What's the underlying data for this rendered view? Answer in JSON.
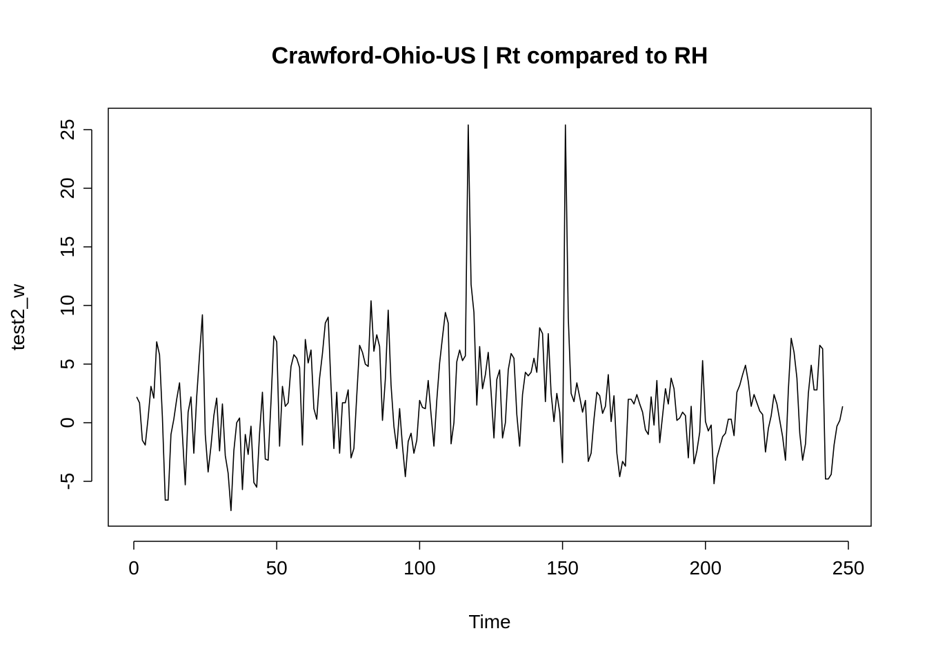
{
  "chart_data": {
    "type": "line",
    "title": "Crawford-Ohio-US | Rt compared to RH",
    "xlabel": "Time",
    "ylabel": "test2_w",
    "xlim": [
      1,
      248
    ],
    "ylim": [
      -7.5,
      25.5
    ],
    "x_ticks": [
      0,
      50,
      100,
      150,
      200,
      250
    ],
    "y_ticks": [
      -5,
      0,
      5,
      10,
      15,
      20,
      25
    ],
    "x_tick_labels": [
      "0",
      "50",
      "100",
      "150",
      "200",
      "250"
    ],
    "y_tick_labels": [
      "-5",
      "0",
      "5",
      "10",
      "15",
      "20",
      "25"
    ],
    "grid": false,
    "legend": "none",
    "series": [
      {
        "color": "#000000",
        "x_start": 1,
        "values": [
          2.2,
          1.7,
          -1.5,
          -1.9,
          0.4,
          3.1,
          2.1,
          6.9,
          5.8,
          0.5,
          -6.6,
          -6.6,
          -1.0,
          0.3,
          2.0,
          3.4,
          -1.0,
          -5.3,
          0.9,
          2.2,
          -2.6,
          2.2,
          5.8,
          9.2,
          -1.0,
          -4.2,
          -2.0,
          0.6,
          2.1,
          -2.4,
          1.6,
          -2.8,
          -4.3,
          -7.5,
          -2.4,
          0.0,
          0.4,
          -5.7,
          -1.0,
          -2.7,
          -0.3,
          -5.1,
          -5.5,
          -0.9,
          2.6,
          -3.1,
          -3.2,
          1.8,
          7.4,
          6.9,
          -2.0,
          3.1,
          1.4,
          1.7,
          4.8,
          5.8,
          5.5,
          4.7,
          -1.9,
          7.1,
          5.1,
          6.2,
          1.2,
          0.3,
          3.8,
          5.9,
          8.5,
          9.0,
          3.1,
          -2.2,
          2.6,
          -2.6,
          1.7,
          1.7,
          2.8,
          -3.0,
          -2.2,
          2.3,
          6.6,
          6.0,
          5.0,
          4.8,
          10.4,
          6.1,
          7.5,
          6.5,
          0.2,
          3.7,
          9.6,
          3.2,
          -0.3,
          -2.2,
          1.2,
          -2.0,
          -4.6,
          -1.6,
          -0.9,
          -2.6,
          -1.5,
          1.9,
          1.3,
          1.2,
          3.6,
          0.7,
          -2.0,
          1.9,
          5.1,
          7.3,
          9.4,
          8.5,
          -1.8,
          0.0,
          5.2,
          6.2,
          5.3,
          5.7,
          25.4,
          11.8,
          9.4,
          1.5,
          6.5,
          2.9,
          4.1,
          6.0,
          2.6,
          -1.3,
          3.7,
          4.5,
          -1.3,
          0.0,
          4.5,
          5.9,
          5.5,
          0.7,
          -2.0,
          2.4,
          4.3,
          4.0,
          4.3,
          5.5,
          4.3,
          8.1,
          7.6,
          1.8,
          7.6,
          2.5,
          0.1,
          2.5,
          0.9,
          -3.4,
          25.4,
          9.0,
          2.5,
          1.8,
          3.4,
          2.2,
          0.9,
          1.9,
          -3.3,
          -2.6,
          0.3,
          2.6,
          2.3,
          0.8,
          1.4,
          4.1,
          0.1,
          2.3,
          -2.6,
          -4.6,
          -3.3,
          -3.7,
          2.0,
          2.0,
          1.6,
          2.4,
          1.6,
          0.9,
          -0.6,
          -1.0,
          2.2,
          -0.2,
          3.6,
          -1.7,
          0.6,
          2.9,
          1.6,
          3.8,
          2.9,
          0.2,
          0.4,
          0.9,
          0.6,
          -3.0,
          1.4,
          -3.5,
          -2.4,
          -0.8,
          5.3,
          0.1,
          -0.7,
          -0.2,
          -5.2,
          -3.0,
          -2.1,
          -1.2,
          -0.9,
          0.3,
          0.3,
          -1.1,
          2.6,
          3.2,
          4.1,
          4.9,
          3.5,
          1.4,
          2.4,
          1.7,
          1.0,
          0.7,
          -2.5,
          -0.5,
          0.6,
          2.4,
          1.6,
          0.2,
          -1.2,
          -3.2,
          2.8,
          7.2,
          6.0,
          3.8,
          -0.9,
          -3.2,
          -1.8,
          2.5,
          4.9,
          2.8,
          2.8,
          6.6,
          6.3,
          -4.8,
          -4.8,
          -4.4,
          -1.9,
          -0.3,
          0.2,
          1.4
        ]
      }
    ]
  }
}
